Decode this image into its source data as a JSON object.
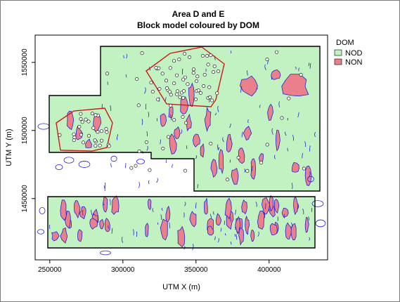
{
  "chart_data": {
    "type": "map",
    "title": "Area D and E",
    "subtitle": "Block model coloured by DOM",
    "xlabel": "UTM X (m)",
    "ylabel": "UTM Y (m)",
    "xlim": [
      240000,
      440000
    ],
    "ylim": [
      1405000,
      1570000
    ],
    "x_ticks": [
      250000,
      300000,
      350000,
      400000
    ],
    "y_ticks": [
      1450000,
      1500000,
      1550000
    ],
    "legend": {
      "title": "DOM",
      "position": "top-right",
      "entries": [
        {
          "label": "NOD",
          "color": "#c2f2c2"
        },
        {
          "label": "NON",
          "color": "#e9808c"
        }
      ]
    },
    "colors": {
      "nod_fill": "#c2f2c2",
      "non_fill": "#e9808c",
      "contour_line": "#2323d6",
      "boundary": "#000000",
      "polygon_outline": "#cc1a1a"
    }
  }
}
